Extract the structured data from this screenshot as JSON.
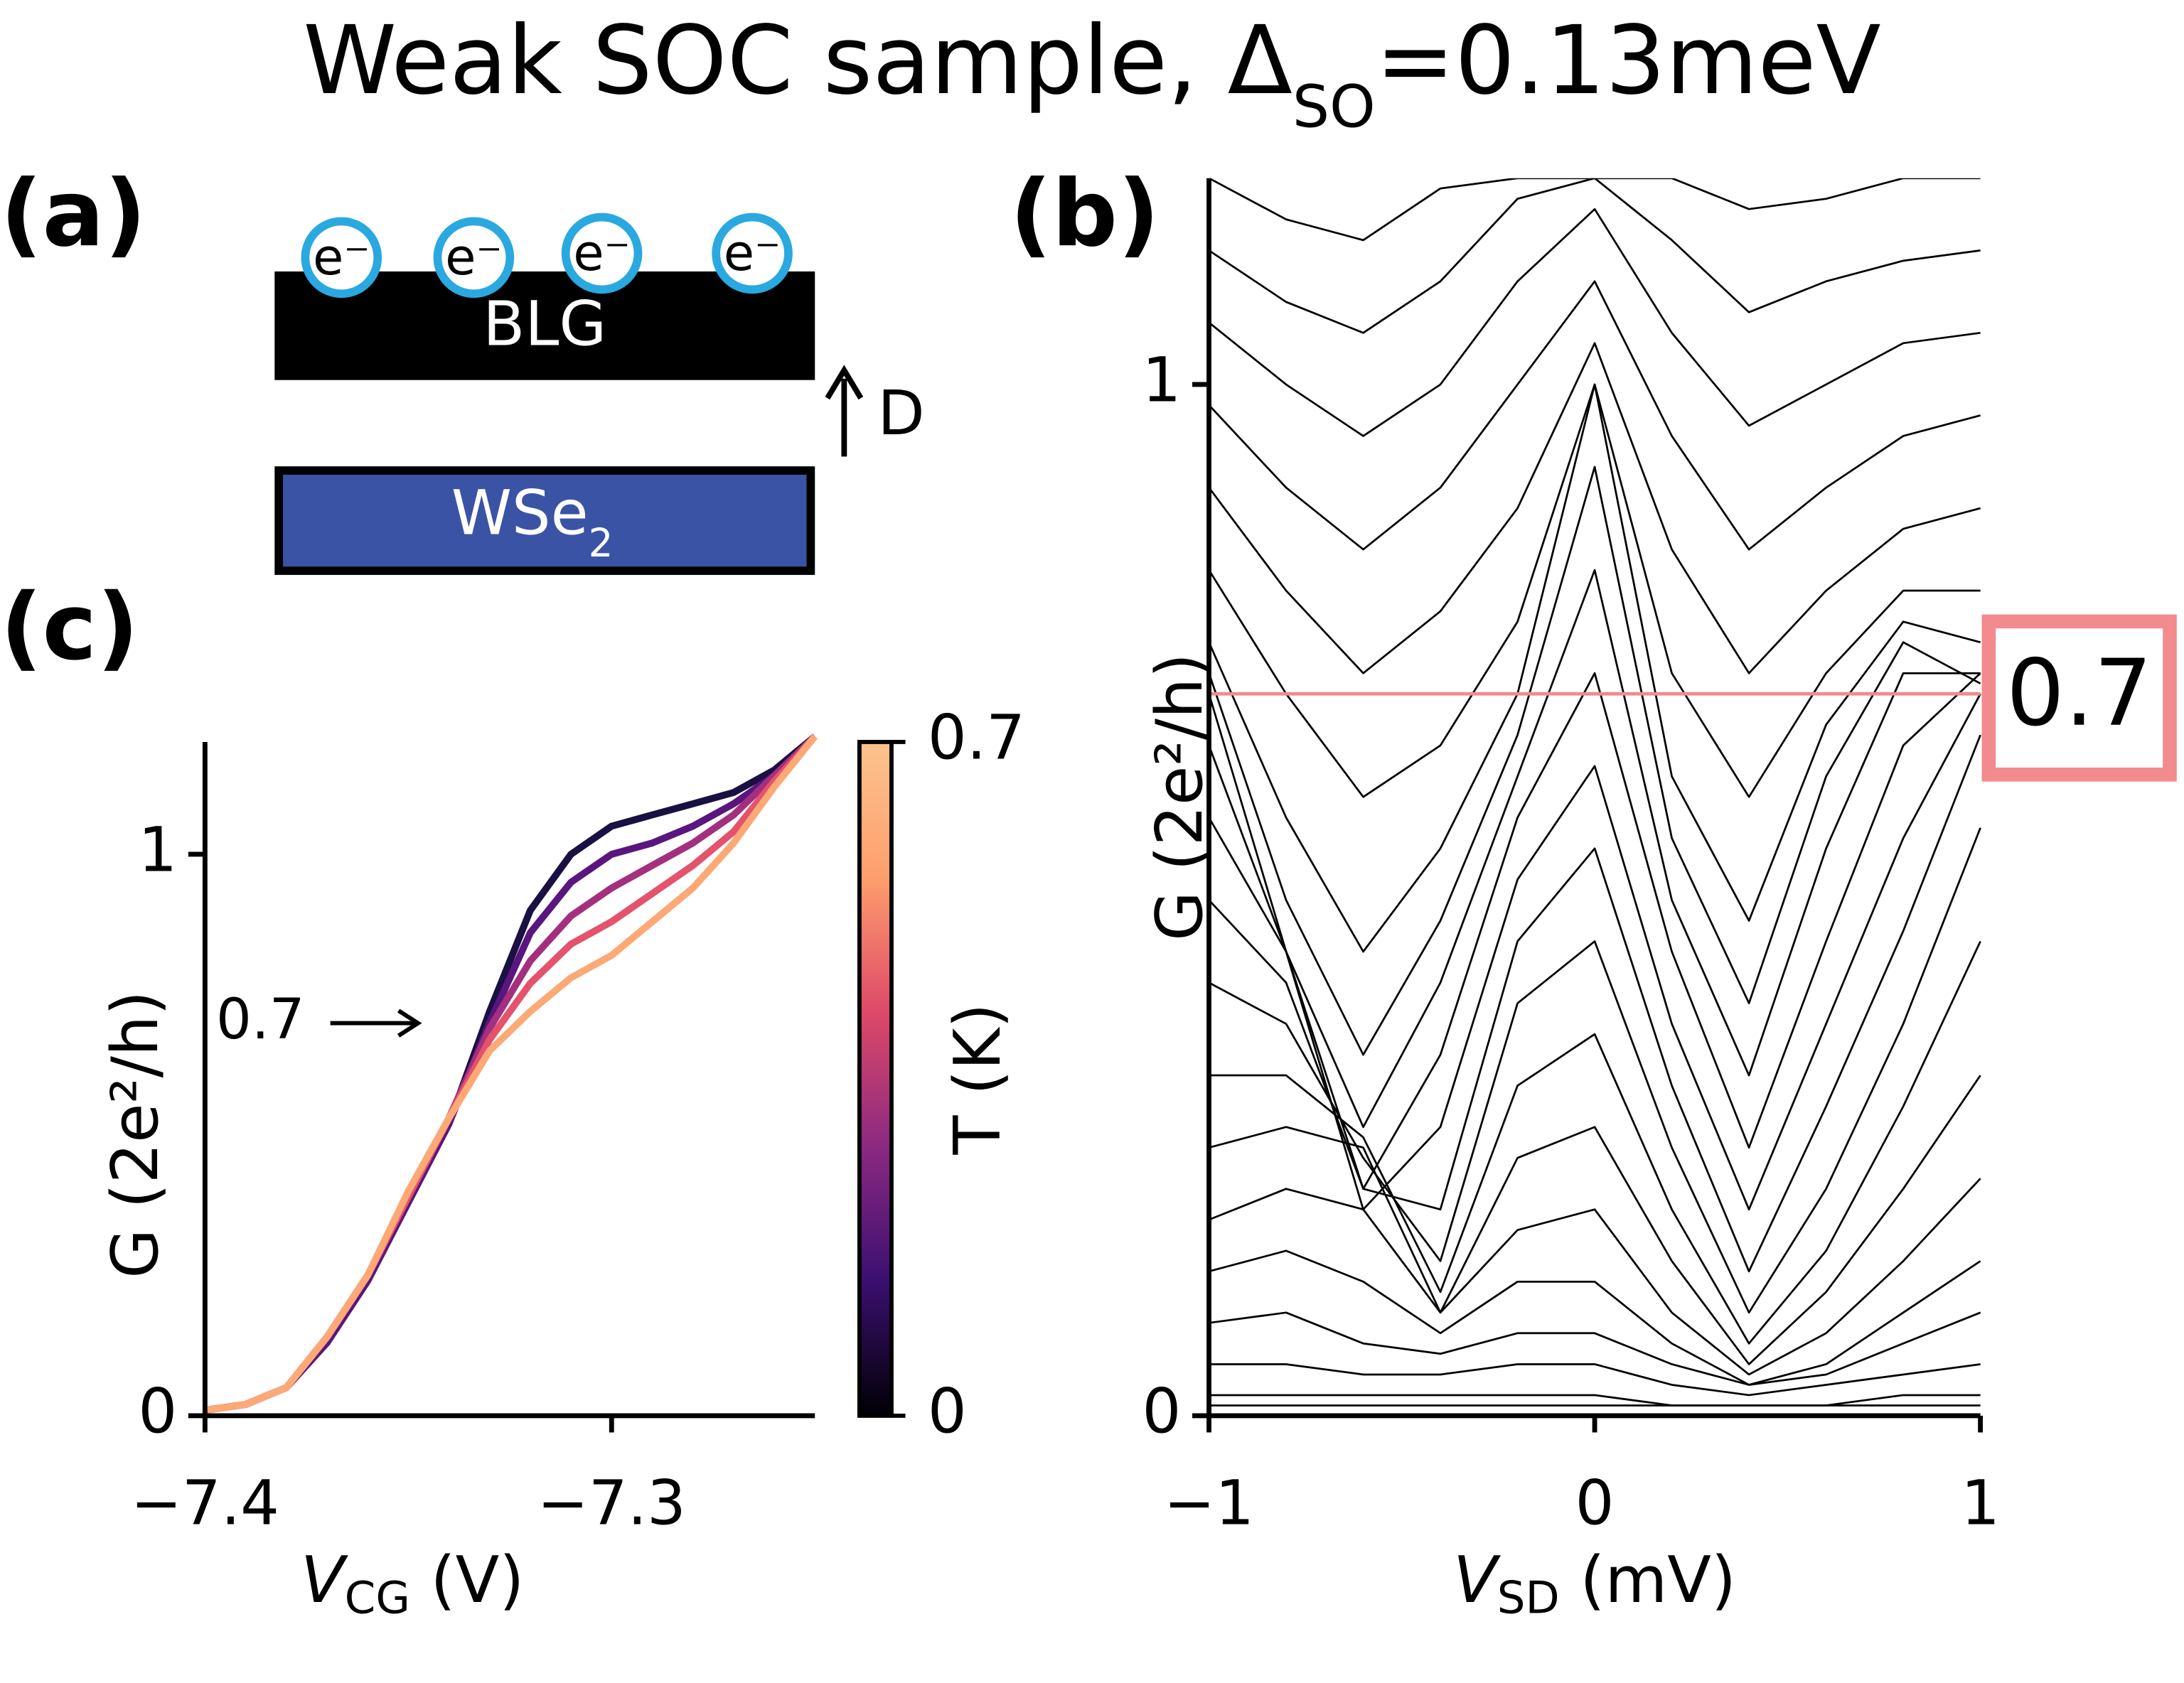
{
  "title": {
    "text": "Weak SOC sample, Δ",
    "sub": "SO",
    "rest": "=0.13meV"
  },
  "panels": [
    "(a)",
    "(b)",
    "(c)"
  ],
  "diagram": {
    "electrons": [
      "e⁻",
      "e⁻",
      "e⁻",
      "e⁻"
    ],
    "top_layer": "BLG",
    "bottom_layer": {
      "text": "WSe",
      "sub": "2"
    },
    "field": "D"
  },
  "chart_data": [
    {
      "type": "line",
      "panel": "(b)",
      "xlabel": {
        "symbol": "V",
        "sub": "SD",
        "unit": " (mV)"
      },
      "ylabel": "G (2e²/h)",
      "x": [
        -1,
        -0.8,
        -0.6,
        -0.4,
        -0.2,
        0,
        0.2,
        0.4,
        0.6,
        0.8,
        1
      ],
      "xlim": [
        -1,
        1
      ],
      "ylim": [
        0,
        1.2
      ],
      "xticks": [
        {
          "value": -1,
          "label": "−1"
        },
        0,
        1
      ],
      "yticks": [
        0,
        1
      ],
      "color": "#000000",
      "hline": {
        "value": 0.7,
        "color": "#f28a8e"
      },
      "series": [
        {
          "values": [
            0.01,
            0.01,
            0.01,
            0.01,
            0.01,
            0.01,
            0.01,
            0.01,
            0.01,
            0.01,
            0.01
          ]
        },
        {
          "values": [
            0.02,
            0.02,
            0.02,
            0.02,
            0.02,
            0.02,
            0.01,
            0.01,
            0.01,
            0.02,
            0.02
          ]
        },
        {
          "values": [
            0.05,
            0.05,
            0.04,
            0.04,
            0.05,
            0.05,
            0.03,
            0.02,
            0.03,
            0.04,
            0.05
          ]
        },
        {
          "values": [
            0.09,
            0.1,
            0.07,
            0.06,
            0.08,
            0.08,
            0.05,
            0.03,
            0.04,
            0.07,
            0.1
          ]
        },
        {
          "values": [
            0.14,
            0.16,
            0.13,
            0.08,
            0.13,
            0.13,
            0.07,
            0.03,
            0.05,
            0.1,
            0.15
          ]
        },
        {
          "values": [
            0.19,
            0.22,
            0.2,
            0.1,
            0.18,
            0.2,
            0.1,
            0.04,
            0.08,
            0.15,
            0.23
          ]
        },
        {
          "values": [
            0.26,
            0.28,
            0.26,
            0.1,
            0.25,
            0.28,
            0.15,
            0.05,
            0.12,
            0.22,
            0.33
          ]
        },
        {
          "values": [
            0.33,
            0.33,
            0.27,
            0.12,
            0.32,
            0.37,
            0.2,
            0.07,
            0.16,
            0.3,
            0.46
          ]
        },
        {
          "values": [
            0.42,
            0.38,
            0.25,
            0.15,
            0.4,
            0.46,
            0.26,
            0.1,
            0.22,
            0.38,
            0.57
          ]
        },
        {
          "values": [
            0.5,
            0.42,
            0.22,
            0.2,
            0.46,
            0.55,
            0.32,
            0.14,
            0.3,
            0.47,
            0.66
          ]
        },
        {
          "values": [
            0.58,
            0.45,
            0.2,
            0.28,
            0.52,
            0.63,
            0.38,
            0.2,
            0.38,
            0.56,
            0.7
          ]
        },
        {
          "values": [
            0.65,
            0.45,
            0.22,
            0.35,
            0.58,
            0.72,
            0.45,
            0.26,
            0.46,
            0.65,
            0.72
          ]
        },
        {
          "values": [
            0.7,
            0.45,
            0.28,
            0.42,
            0.62,
            0.82,
            0.5,
            0.33,
            0.55,
            0.72,
            0.72
          ]
        },
        {
          "values": [
            0.72,
            0.5,
            0.35,
            0.48,
            0.66,
            0.92,
            0.56,
            0.4,
            0.62,
            0.75,
            0.71
          ]
        },
        {
          "values": [
            0.75,
            0.58,
            0.45,
            0.55,
            0.7,
            1.0,
            0.62,
            0.48,
            0.67,
            0.77,
            0.75
          ]
        },
        {
          "values": [
            0.82,
            0.7,
            0.6,
            0.65,
            0.77,
            1.0,
            0.72,
            0.6,
            0.72,
            0.8,
            0.8
          ]
        },
        {
          "values": [
            0.9,
            0.8,
            0.72,
            0.78,
            0.88,
            1.04,
            0.84,
            0.72,
            0.8,
            0.86,
            0.88
          ]
        },
        {
          "values": [
            0.98,
            0.9,
            0.84,
            0.9,
            1.0,
            1.1,
            0.95,
            0.84,
            0.9,
            0.95,
            0.97
          ]
        },
        {
          "values": [
            1.06,
            1.0,
            0.95,
            1.0,
            1.1,
            1.17,
            1.05,
            0.96,
            1.0,
            1.04,
            1.05
          ]
        },
        {
          "values": [
            1.13,
            1.08,
            1.05,
            1.1,
            1.18,
            1.2,
            1.14,
            1.07,
            1.1,
            1.12,
            1.13
          ]
        },
        {
          "values": [
            1.2,
            1.16,
            1.14,
            1.19,
            1.2,
            1.2,
            1.2,
            1.17,
            1.18,
            1.2,
            1.2
          ]
        }
      ]
    },
    {
      "type": "line",
      "panel": "(c)",
      "xlabel": {
        "symbol": "V",
        "sub": "CG",
        "unit": " (V)"
      },
      "ylabel": "G (2e²/h)",
      "annotation": "0.7",
      "x": [
        -7.4,
        -7.39,
        -7.38,
        -7.37,
        -7.36,
        -7.35,
        -7.34,
        -7.33,
        -7.32,
        -7.31,
        -7.3,
        -7.29,
        -7.28,
        -7.27,
        -7.26,
        -7.25
      ],
      "xlim": [
        -7.4,
        -7.25
      ],
      "ylim": [
        0,
        1.2
      ],
      "xticks": [
        {
          "value": -7.4,
          "label": "−7.4"
        },
        {
          "value": -7.3,
          "label": "−7.3"
        }
      ],
      "yticks": [
        0,
        1
      ],
      "colorbar": {
        "label": "T (K)",
        "lim": [
          0,
          0.7
        ],
        "ticks": [
          0,
          0.7
        ],
        "colors": [
          "#000004",
          "#3b0f70",
          "#8c2981",
          "#de4968",
          "#fe9f6d",
          "#fcc38e"
        ]
      },
      "series": [
        {
          "color": "#1a1042",
          "values": [
            0.01,
            0.02,
            0.05,
            0.13,
            0.24,
            0.38,
            0.52,
            0.72,
            0.9,
            1.0,
            1.05,
            1.07,
            1.09,
            1.11,
            1.15,
            1.21
          ]
        },
        {
          "color": "#5a167e",
          "values": [
            0.01,
            0.02,
            0.05,
            0.13,
            0.24,
            0.38,
            0.52,
            0.7,
            0.86,
            0.95,
            1.0,
            1.02,
            1.05,
            1.09,
            1.14,
            1.21
          ]
        },
        {
          "color": "#a3307e",
          "values": [
            0.01,
            0.02,
            0.05,
            0.14,
            0.25,
            0.39,
            0.53,
            0.69,
            0.81,
            0.89,
            0.94,
            0.98,
            1.02,
            1.07,
            1.14,
            1.21
          ]
        },
        {
          "color": "#e4526c",
          "values": [
            0.01,
            0.02,
            0.05,
            0.14,
            0.25,
            0.39,
            0.53,
            0.67,
            0.77,
            0.84,
            0.88,
            0.93,
            0.98,
            1.04,
            1.13,
            1.21
          ]
        },
        {
          "color": "#fca976",
          "values": [
            0.01,
            0.02,
            0.05,
            0.14,
            0.25,
            0.4,
            0.53,
            0.65,
            0.72,
            0.78,
            0.82,
            0.88,
            0.94,
            1.02,
            1.12,
            1.21
          ]
        }
      ]
    }
  ]
}
